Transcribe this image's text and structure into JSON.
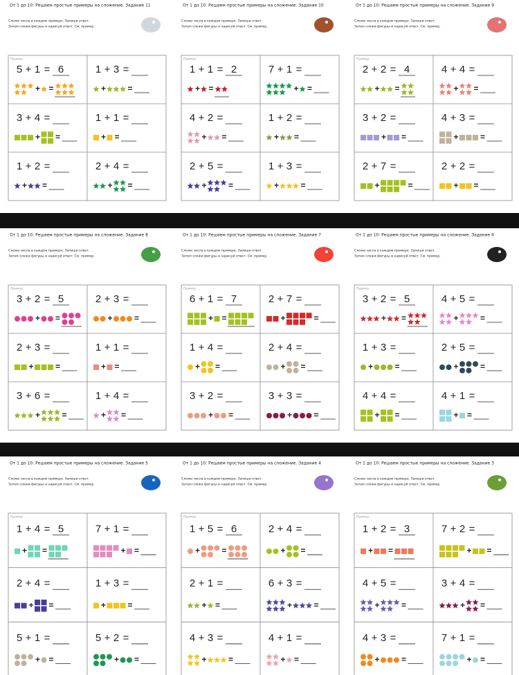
{
  "symbols": {
    "plus": "+",
    "equals": "="
  },
  "worksheets": [
    {
      "title": "От 1 до 10: Решаем простые примеры на сложение. Задание 11",
      "instructions": [
        "Сложи числа в каждом примере. Запиши ответ.",
        "Затем сложи фигуры и нарисуй ответ. См. пример."
      ],
      "example_label": "Пример",
      "problems": [
        {
          "a": 5,
          "b": 1,
          "answer": 6,
          "shape": "star",
          "color": "#f5a623"
        },
        {
          "a": 1,
          "b": 3,
          "shape": "star",
          "color": "#9ab82a"
        },
        {
          "a": 3,
          "b": 4,
          "shape": "square",
          "color": "#a3c21f"
        },
        {
          "a": 1,
          "b": 1,
          "shape": "square",
          "color": "#f6c21b"
        },
        {
          "a": 1,
          "b": 2,
          "shape": "star",
          "color": "#4a3d9a"
        },
        {
          "a": 2,
          "b": 4,
          "shape": "star",
          "color": "#1a9a4a"
        }
      ]
    },
    {
      "title": "От 1 до 10: Решаем простые примеры на сложение. Задание 10",
      "instructions": [
        "Сложи числа в каждом примере. Запиши ответ.",
        "Затем сложи фигуры и нарисуй ответ. См. пример."
      ],
      "example_label": "Пример",
      "problems": [
        {
          "a": 1,
          "b": 1,
          "answer": 2,
          "shape": "star",
          "color": "#c8202e"
        },
        {
          "a": 7,
          "b": 1,
          "shape": "star",
          "color": "#1a9a4a"
        },
        {
          "a": 4,
          "b": 2,
          "shape": "star",
          "color": "#e79ab0"
        },
        {
          "a": 1,
          "b": 2,
          "shape": "star",
          "color": "#8a9a4a"
        },
        {
          "a": 2,
          "b": 5,
          "shape": "star",
          "color": "#4a3d9a"
        },
        {
          "a": 1,
          "b": 3,
          "shape": "star",
          "color": "#f6c21b"
        }
      ]
    },
    {
      "title": "От 1 до 10: Решаем простые примеры на сложение. Задание 9",
      "instructions": [
        "Сложи числа в каждом примере. Запиши ответ.",
        "Затем сложи фигуры и нарисуй ответ. См. пример."
      ],
      "example_label": "Пример",
      "problems": [
        {
          "a": 2,
          "b": 2,
          "answer": 4,
          "shape": "star",
          "color": "#9ab82a"
        },
        {
          "a": 4,
          "b": 4,
          "shape": "star",
          "color": "#e8837a"
        },
        {
          "a": 3,
          "b": 2,
          "shape": "square",
          "color": "#a49ad6"
        },
        {
          "a": 4,
          "b": 3,
          "shape": "square",
          "color": "#bdb39a"
        },
        {
          "a": 2,
          "b": 7,
          "shape": "square",
          "color": "#a3c21f"
        },
        {
          "a": 2,
          "b": 2,
          "shape": "square",
          "color": "#f6c21b"
        }
      ]
    },
    {
      "title": "От 1 до 10: Решаем простые примеры на сложение. Задание 8",
      "instructions": [
        "Сложи числа в каждом примере. Запиши ответ.",
        "Затем сложи фигуры и нарисуй ответ. См. пример."
      ],
      "example_label": "Пример",
      "problems": [
        {
          "a": 3,
          "b": 2,
          "answer": 5,
          "shape": "circle",
          "color": "#e0408e"
        },
        {
          "a": 2,
          "b": 3,
          "shape": "circle",
          "color": "#f08a1c"
        },
        {
          "a": 2,
          "b": 3,
          "shape": "square",
          "color": "#a3c21f"
        },
        {
          "a": 1,
          "b": 1,
          "shape": "square",
          "color": "#ef8a80"
        },
        {
          "a": 3,
          "b": 6,
          "shape": "star",
          "color": "#9ab82a"
        },
        {
          "a": 1,
          "b": 4,
          "shape": "star",
          "color": "#e58ac0"
        }
      ]
    },
    {
      "title": "От 1 до 10: Решаем простые примеры на сложение. Задание 7",
      "instructions": [
        "Сложи числа в каждом примере. Запиши ответ.",
        "Затем сложи фигуры и нарисуй ответ. См. пример."
      ],
      "example_label": "Пример",
      "problems": [
        {
          "a": 6,
          "b": 1,
          "answer": 7,
          "shape": "square",
          "color": "#a3c21f"
        },
        {
          "a": 2,
          "b": 7,
          "shape": "square",
          "color": "#d42a2a"
        },
        {
          "a": 1,
          "b": 4,
          "shape": "circle",
          "color": "#f6c21b"
        },
        {
          "a": 2,
          "b": 4,
          "shape": "circle",
          "color": "#bdb39a"
        },
        {
          "a": 3,
          "b": 2,
          "shape": "circle",
          "color": "#f09a80"
        },
        {
          "a": 3,
          "b": 3,
          "shape": "circle",
          "color": "#8a1a4a"
        }
      ]
    },
    {
      "title": "От 1 до 10: Решаем простые примеры на сложение. Задание 6",
      "instructions": [
        "Сложи числа в каждом примере. Запиши ответ.",
        "Затем сложи фигуры и нарисуй ответ. См. пример."
      ],
      "example_label": "Пример",
      "problems": [
        {
          "a": 3,
          "b": 2,
          "answer": 5,
          "shape": "star",
          "color": "#d42a2a"
        },
        {
          "a": 4,
          "b": 5,
          "shape": "star",
          "color": "#e58ac0"
        },
        {
          "a": 1,
          "b": 3,
          "shape": "circle",
          "color": "#9ab82a"
        },
        {
          "a": 2,
          "b": 5,
          "shape": "circle",
          "color": "#2e4a5a"
        },
        {
          "a": 4,
          "b": 4,
          "shape": "square",
          "color": "#a3c21f"
        },
        {
          "a": 4,
          "b": 1,
          "shape": "square",
          "color": "#9ad6e0"
        }
      ]
    },
    {
      "title": "От 1 до 10: Решаем простые примеры на сложение. Задание 5",
      "instructions": [
        "Сложи числа в каждом примере. Запиши ответ.",
        "Затем сложи фигуры и нарисуй ответ. См. пример."
      ],
      "example_label": "Пример",
      "problems": [
        {
          "a": 1,
          "b": 4,
          "answer": 5,
          "shape": "square",
          "color": "#6fd6b8"
        },
        {
          "a": 7,
          "b": 1,
          "shape": "square",
          "color": "#e58ac0"
        },
        {
          "a": 2,
          "b": 4,
          "shape": "square",
          "color": "#4a3d9a"
        },
        {
          "a": 1,
          "b": 3,
          "shape": "square",
          "color": "#f6c21b"
        },
        {
          "a": 5,
          "b": 1,
          "shape": "circle",
          "color": "#bdb39a"
        },
        {
          "a": 5,
          "b": 2,
          "shape": "circle",
          "color": "#1a9a4a"
        }
      ]
    },
    {
      "title": "От 1 до 10: Решаем простые примеры на сложение. Задание 4",
      "instructions": [
        "Сложи числа в каждом примере. Запиши ответ.",
        "Затем сложи фигуры и нарисуй ответ. См. пример."
      ],
      "example_label": "Пример",
      "problems": [
        {
          "a": 1,
          "b": 5,
          "answer": 6,
          "shape": "circle",
          "color": "#f09a80"
        },
        {
          "a": 2,
          "b": 4,
          "shape": "circle",
          "color": "#a3c21f"
        },
        {
          "a": 2,
          "b": 1,
          "shape": "star",
          "color": "#9ab82a"
        },
        {
          "a": 6,
          "b": 3,
          "shape": "star",
          "color": "#4a4aa0"
        },
        {
          "a": 4,
          "b": 3,
          "shape": "star",
          "color": "#f6c21b"
        },
        {
          "a": 4,
          "b": 1,
          "shape": "star",
          "color": "#f0a0a8"
        }
      ]
    },
    {
      "title": "От 1 до 10: Решаем простые примеры на сложение. Задание 3",
      "instructions": [
        "Сложи числа в каждом примере. Запиши ответ.",
        "Затем сложи фигуры и нарисуй ответ. См. пример."
      ],
      "example_label": "Пример",
      "problems": [
        {
          "a": 1,
          "b": 2,
          "answer": 3,
          "shape": "square",
          "color": "#ef7a5a"
        },
        {
          "a": 7,
          "b": 2,
          "shape": "square",
          "color": "#c8c21b"
        },
        {
          "a": 4,
          "b": 5,
          "shape": "star",
          "color": "#6a5ab0"
        },
        {
          "a": 3,
          "b": 4,
          "shape": "star",
          "color": "#8a1a4a"
        },
        {
          "a": 4,
          "b": 3,
          "shape": "circle",
          "color": "#f08a1c"
        },
        {
          "a": 7,
          "b": 1,
          "shape": "circle",
          "color": "#9ad6e0"
        }
      ]
    }
  ]
}
